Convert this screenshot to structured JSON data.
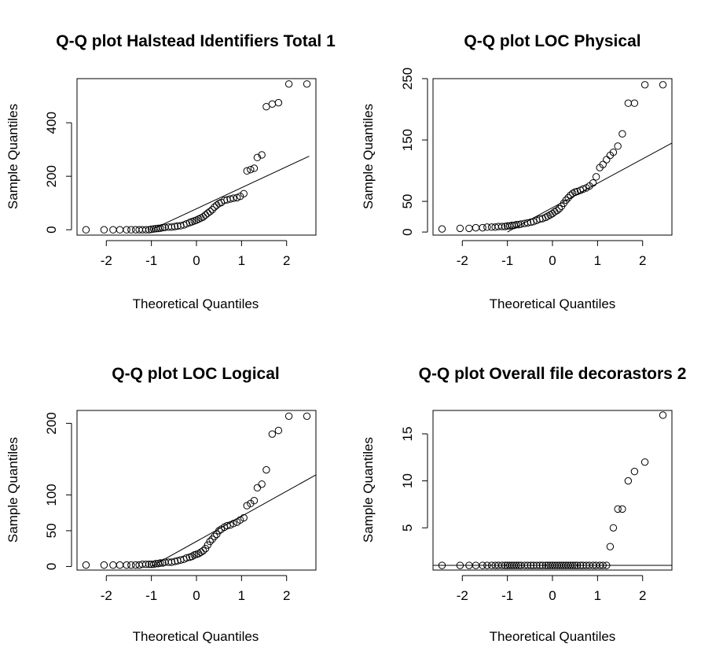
{
  "chart_data": [
    {
      "type": "scatter",
      "title": "Q-Q plot  Halstead Identifiers Total 1",
      "xlabel": "Theoretical Quantiles",
      "ylabel": "Sample Quantiles",
      "xlim": [
        -2.65,
        2.65
      ],
      "ylim": [
        -20,
        565
      ],
      "xticks": [
        -2,
        -1,
        0,
        1,
        2
      ],
      "yticks": [
        0,
        200,
        400
      ],
      "reference_line": {
        "x": [
          -1,
          2.5
        ],
        "y": [
          0,
          275
        ]
      },
      "series": [
        {
          "x": [
            -2.45,
            -2.05,
            -1.85,
            -1.7,
            -1.55,
            -1.45,
            -1.35,
            -1.27,
            -1.2,
            -1.12,
            -1.05,
            -1,
            -0.95,
            -0.9,
            -0.85,
            -0.8,
            -0.75,
            -0.7,
            -0.62,
            -0.55,
            -0.48,
            -0.42,
            -0.35,
            -0.28,
            -0.22,
            -0.15,
            -0.1,
            -0.05,
            0,
            0.05,
            0.1,
            0.15,
            0.2,
            0.25,
            0.3,
            0.35,
            0.4,
            0.45,
            0.5,
            0.55,
            0.62,
            0.68,
            0.75,
            0.82,
            0.9,
            0.97,
            1.05,
            1.12,
            1.2,
            1.28,
            1.35,
            1.45,
            1.55,
            1.68,
            1.82,
            2.05,
            2.45
          ],
          "y": [
            0,
            0,
            0,
            0,
            0,
            0,
            0,
            0,
            0,
            0,
            0,
            2,
            3,
            4,
            5,
            6,
            8,
            9,
            10,
            10,
            12,
            14,
            15,
            18,
            22,
            27,
            30,
            33,
            36,
            40,
            44,
            48,
            55,
            62,
            68,
            75,
            85,
            92,
            98,
            102,
            110,
            112,
            115,
            118,
            120,
            125,
            135,
            220,
            225,
            230,
            270,
            280,
            460,
            470,
            475,
            545,
            545
          ]
        }
      ]
    },
    {
      "type": "scatter",
      "title": "Q-Q plot  LOC Physical",
      "xlabel": "Theoretical Quantiles",
      "ylabel": "Sample Quantiles",
      "xlim": [
        -2.65,
        2.65
      ],
      "ylim": [
        -5,
        250
      ],
      "xticks": [
        -2,
        -1,
        0,
        1,
        2
      ],
      "yticks": [
        0,
        50,
        150,
        250
      ],
      "reference_line": {
        "x": [
          -1,
          2.65
        ],
        "y": [
          0,
          145
        ]
      },
      "series": [
        {
          "x": [
            -2.45,
            -2.05,
            -1.85,
            -1.7,
            -1.55,
            -1.45,
            -1.35,
            -1.27,
            -1.2,
            -1.12,
            -1.05,
            -1,
            -0.95,
            -0.9,
            -0.85,
            -0.8,
            -0.75,
            -0.7,
            -0.62,
            -0.55,
            -0.48,
            -0.42,
            -0.35,
            -0.28,
            -0.22,
            -0.15,
            -0.1,
            -0.05,
            0,
            0.05,
            0.1,
            0.15,
            0.2,
            0.25,
            0.3,
            0.35,
            0.4,
            0.45,
            0.5,
            0.55,
            0.62,
            0.68,
            0.75,
            0.82,
            0.9,
            0.97,
            1.05,
            1.12,
            1.2,
            1.28,
            1.35,
            1.45,
            1.55,
            1.68,
            1.82,
            2.05,
            2.45
          ],
          "y": [
            5,
            6,
            6,
            7,
            7,
            8,
            8,
            8,
            9,
            9,
            9,
            10,
            10,
            11,
            11,
            12,
            12,
            13,
            14,
            15,
            16,
            17,
            19,
            21,
            22,
            24,
            26,
            28,
            30,
            33,
            35,
            38,
            42,
            47,
            52,
            56,
            60,
            63,
            65,
            66,
            68,
            70,
            72,
            75,
            80,
            90,
            105,
            110,
            118,
            125,
            130,
            140,
            160,
            210,
            210,
            240,
            240
          ]
        }
      ]
    },
    {
      "type": "scatter",
      "title": "Q-Q plot  LOC Logical",
      "xlabel": "Theoretical Quantiles",
      "ylabel": "Sample Quantiles",
      "xlim": [
        -2.65,
        2.65
      ],
      "ylim": [
        -5,
        218
      ],
      "xticks": [
        -2,
        -1,
        0,
        1,
        2
      ],
      "yticks": [
        0,
        50,
        100,
        200
      ],
      "reference_line": {
        "x": [
          -1,
          2.65
        ],
        "y": [
          0,
          128
        ]
      },
      "series": [
        {
          "x": [
            -2.45,
            -2.05,
            -1.85,
            -1.7,
            -1.55,
            -1.45,
            -1.35,
            -1.27,
            -1.2,
            -1.12,
            -1.05,
            -1,
            -0.95,
            -0.9,
            -0.85,
            -0.8,
            -0.75,
            -0.7,
            -0.62,
            -0.55,
            -0.48,
            -0.42,
            -0.35,
            -0.28,
            -0.22,
            -0.15,
            -0.1,
            -0.05,
            0,
            0.05,
            0.1,
            0.15,
            0.2,
            0.25,
            0.3,
            0.35,
            0.4,
            0.45,
            0.5,
            0.55,
            0.62,
            0.68,
            0.75,
            0.82,
            0.9,
            0.97,
            1.05,
            1.12,
            1.2,
            1.28,
            1.35,
            1.45,
            1.55,
            1.68,
            1.82,
            2.05,
            2.45
          ],
          "y": [
            2,
            2,
            2,
            2,
            2,
            2,
            2,
            2,
            3,
            3,
            3,
            3,
            3,
            4,
            4,
            5,
            5,
            6,
            6,
            6,
            7,
            8,
            9,
            10,
            12,
            13,
            14,
            16,
            17,
            18,
            20,
            22,
            25,
            30,
            35,
            38,
            42,
            45,
            50,
            52,
            55,
            57,
            58,
            60,
            62,
            65,
            68,
            85,
            88,
            92,
            110,
            115,
            135,
            185,
            190,
            210,
            210
          ]
        }
      ]
    },
    {
      "type": "scatter",
      "title": "Q-Q plot  Overall file decorastors 2",
      "xlabel": "Theoretical Quantiles",
      "ylabel": "Sample Quantiles",
      "xlim": [
        -2.65,
        2.65
      ],
      "ylim": [
        0.5,
        17.5
      ],
      "xticks": [
        -2,
        -1,
        0,
        1,
        2
      ],
      "yticks": [
        5,
        10,
        15
      ],
      "reference_line": {
        "x": [
          -2.65,
          2.65
        ],
        "y": [
          1,
          1
        ]
      },
      "series": [
        {
          "x": [
            -2.45,
            -2.05,
            -1.85,
            -1.7,
            -1.55,
            -1.45,
            -1.35,
            -1.27,
            -1.2,
            -1.12,
            -1.05,
            -1,
            -0.95,
            -0.9,
            -0.85,
            -0.8,
            -0.75,
            -0.7,
            -0.62,
            -0.55,
            -0.48,
            -0.42,
            -0.35,
            -0.28,
            -0.22,
            -0.15,
            -0.1,
            -0.05,
            0,
            0.05,
            0.1,
            0.15,
            0.2,
            0.25,
            0.3,
            0.35,
            0.4,
            0.45,
            0.5,
            0.55,
            0.62,
            0.68,
            0.75,
            0.82,
            0.9,
            0.97,
            1.05,
            1.12,
            1.2,
            1.28,
            1.35,
            1.45,
            1.55,
            1.68,
            1.82,
            2.05,
            2.45
          ],
          "y": [
            1,
            1,
            1,
            1,
            1,
            1,
            1,
            1,
            1,
            1,
            1,
            1,
            1,
            1,
            1,
            1,
            1,
            1,
            1,
            1,
            1,
            1,
            1,
            1,
            1,
            1,
            1,
            1,
            1,
            1,
            1,
            1,
            1,
            1,
            1,
            1,
            1,
            1,
            1,
            1,
            1,
            1,
            1,
            1,
            1,
            1,
            1,
            1,
            1,
            3,
            5,
            7,
            7,
            10,
            11,
            12,
            17
          ]
        }
      ]
    }
  ]
}
